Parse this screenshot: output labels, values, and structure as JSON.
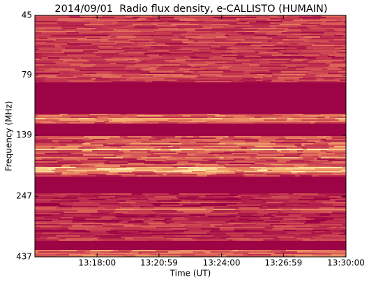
{
  "chart_data": {
    "type": "spectrogram",
    "title": "2014/09/01  Radio flux density, e-CALLISTO (HUMAIN)",
    "x_label": "Time (UT)",
    "y_label": "Frequency (MHz)",
    "xlim": [
      47700,
      48600
    ],
    "xticks": [
      {
        "value": 47880,
        "label": "13:18:00"
      },
      {
        "value": 48059,
        "label": "13:20:59"
      },
      {
        "value": 48240,
        "label": "13:24:00"
      },
      {
        "value": 48419,
        "label": "13:26:59"
      },
      {
        "value": 48600,
        "label": "13:30:00"
      }
    ],
    "ylim": [
      45,
      437
    ],
    "y_log": true,
    "y_inverted": true,
    "yticks": [
      45,
      79,
      139,
      247,
      437
    ]
  }
}
